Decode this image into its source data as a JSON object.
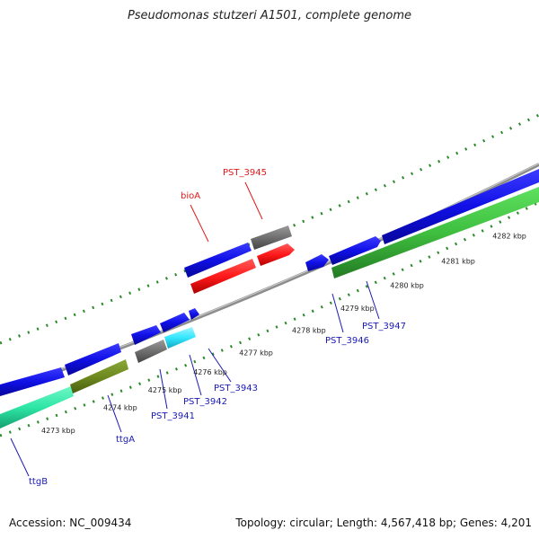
{
  "title": "Pseudomonas stutzeri A1501, complete genome",
  "footer": {
    "accession": "Accession: NC_009434",
    "summary": "Topology: circular; Length: 4,567,418 bp; Genes: 4,201"
  },
  "colors": {
    "backbone": "#8c8c8c",
    "forward_cds": "#1010e6",
    "reverse_cds": "#3fbf3f",
    "rrna": "#ff1a1a",
    "pseudo": "#6f6f6f",
    "other": "#33e6ff",
    "teal": "#2ee6a6",
    "olive": "#6f8a1f",
    "tick": "#2a8a2a",
    "label_blue": "#1a1ab3",
    "label_red": "#e01a1a"
  },
  "ticks": [
    {
      "label": "4273 kbp",
      "t": 0.07
    },
    {
      "label": "4274 kbp",
      "t": 0.185
    },
    {
      "label": "4275 kbp",
      "t": 0.268
    },
    {
      "label": "4276 kbp",
      "t": 0.352
    },
    {
      "label": "4277 kbp",
      "t": 0.437
    },
    {
      "label": "4278 kbp",
      "t": 0.535
    },
    {
      "label": "4279 kbp",
      "t": 0.625
    },
    {
      "label": "4280 kbp",
      "t": 0.717
    },
    {
      "label": "4281 kbp",
      "t": 0.812
    },
    {
      "label": "4282 kbp",
      "t": 0.907
    }
  ],
  "labels": [
    {
      "name": "ttgB",
      "color": "blue"
    },
    {
      "name": "ttgA",
      "color": "blue"
    },
    {
      "name": "PST_3941",
      "color": "blue"
    },
    {
      "name": "PST_3942",
      "color": "blue"
    },
    {
      "name": "PST_3943",
      "color": "blue"
    },
    {
      "name": "PST_3946",
      "color": "blue"
    },
    {
      "name": "PST_3947",
      "color": "blue"
    },
    {
      "name": "bioA",
      "color": "red"
    },
    {
      "name": "PST_3945",
      "color": "red"
    }
  ]
}
